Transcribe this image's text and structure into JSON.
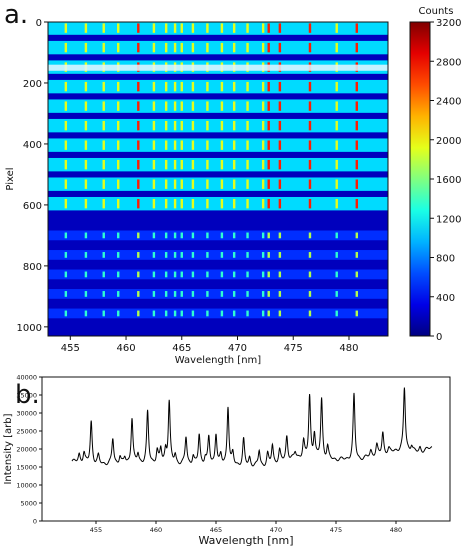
{
  "chart_data": [
    {
      "panel_label": "a.",
      "type": "heatmap",
      "xlabel": "Wavelength [nm]",
      "ylabel": "Pixel",
      "xlim": [
        453,
        483.5
      ],
      "ylim": [
        1030,
        0
      ],
      "x_ticks": [
        455,
        460,
        465,
        470,
        475,
        480
      ],
      "y_ticks": [
        0,
        200,
        400,
        600,
        800,
        1000
      ],
      "colorbar": {
        "title": "Counts",
        "range": [
          0,
          3200
        ],
        "ticks": [
          0,
          400,
          800,
          1200,
          1600,
          2000,
          2400,
          2800,
          3200
        ],
        "colormap": "jet"
      },
      "bright_lines_nm": [
        454.6,
        456.4,
        458.0,
        459.3,
        461.1,
        462.5,
        463.6,
        464.4,
        465.0,
        466.0,
        467.3,
        468.6,
        469.7,
        470.9,
        472.3,
        472.8,
        473.8,
        476.5,
        478.9,
        480.7
      ]
    },
    {
      "panel_label": "b.",
      "type": "line",
      "xlabel": "Wavelength [nm]",
      "ylabel": "Intensity [arb]",
      "xlim": [
        450.5,
        484.5
      ],
      "ylim": [
        0,
        40000
      ],
      "x_ticks": [
        455,
        460,
        465,
        470,
        475,
        480
      ],
      "y_ticks": [
        0,
        5000,
        10000,
        15000,
        20000,
        25000,
        30000,
        35000,
        40000
      ],
      "color": "#000000",
      "baseline": [
        [
          453.0,
          16500
        ],
        [
          454.0,
          16200
        ],
        [
          455.0,
          15800
        ],
        [
          457.0,
          15800
        ],
        [
          459.0,
          16000
        ],
        [
          461.0,
          15900
        ],
        [
          463.0,
          15600
        ],
        [
          465.0,
          15500
        ],
        [
          467.0,
          15300
        ],
        [
          469.0,
          15200
        ],
        [
          470.0,
          16000
        ],
        [
          471.0,
          17000
        ],
        [
          472.0,
          17500
        ],
        [
          474.0,
          17000
        ],
        [
          476.0,
          17000
        ],
        [
          477.0,
          17000
        ],
        [
          478.0,
          18000
        ],
        [
          479.0,
          18500
        ],
        [
          480.0,
          19500
        ],
        [
          481.0,
          19500
        ],
        [
          482.0,
          19000
        ],
        [
          483.0,
          20500
        ]
      ],
      "peaks": [
        [
          453.6,
          18500
        ],
        [
          454.0,
          19000
        ],
        [
          454.6,
          27600
        ],
        [
          455.2,
          18000
        ],
        [
          456.4,
          22800
        ],
        [
          457.0,
          18000
        ],
        [
          457.4,
          17500
        ],
        [
          458.0,
          28600
        ],
        [
          458.5,
          18500
        ],
        [
          459.3,
          30200
        ],
        [
          460.1,
          19500
        ],
        [
          460.4,
          19800
        ],
        [
          460.8,
          19500
        ],
        [
          461.1,
          33100
        ],
        [
          461.6,
          18200
        ],
        [
          462.5,
          23200
        ],
        [
          463.1,
          18000
        ],
        [
          463.6,
          23900
        ],
        [
          464.1,
          17500
        ],
        [
          464.4,
          23000
        ],
        [
          465.0,
          24200
        ],
        [
          465.4,
          18000
        ],
        [
          466.0,
          31800
        ],
        [
          466.4,
          18500
        ],
        [
          467.3,
          22500
        ],
        [
          467.8,
          17500
        ],
        [
          468.6,
          19500
        ],
        [
          469.3,
          18500
        ],
        [
          469.7,
          21000
        ],
        [
          470.3,
          19500
        ],
        [
          470.9,
          23500
        ],
        [
          471.6,
          19000
        ],
        [
          472.3,
          22000
        ],
        [
          472.8,
          34500
        ],
        [
          473.2,
          24000
        ],
        [
          473.8,
          33800
        ],
        [
          474.3,
          20500
        ],
        [
          476.5,
          35000
        ],
        [
          477.9,
          19500
        ],
        [
          478.4,
          21000
        ],
        [
          478.9,
          24500
        ],
        [
          479.4,
          20000
        ],
        [
          480.7,
          37000
        ],
        [
          481.3,
          21000
        ],
        [
          482.0,
          20500
        ]
      ]
    }
  ]
}
